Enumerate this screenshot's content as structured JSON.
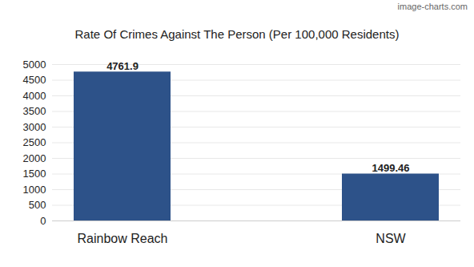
{
  "chart_data": {
    "type": "bar",
    "title": "Rate Of Crimes Against The Person (Per 100,000 Residents)",
    "annotations": [
      "image-charts.com"
    ],
    "categories": [
      "Rainbow Reach",
      "NSW"
    ],
    "values": [
      4761.9,
      1499.46
    ],
    "color": "#2d5289",
    "ylim": [
      0,
      5000
    ],
    "yticks": [
      0,
      500,
      1000,
      1500,
      2000,
      2500,
      3000,
      3500,
      4000,
      4500,
      5000
    ],
    "grid": true,
    "data_labels": true
  }
}
